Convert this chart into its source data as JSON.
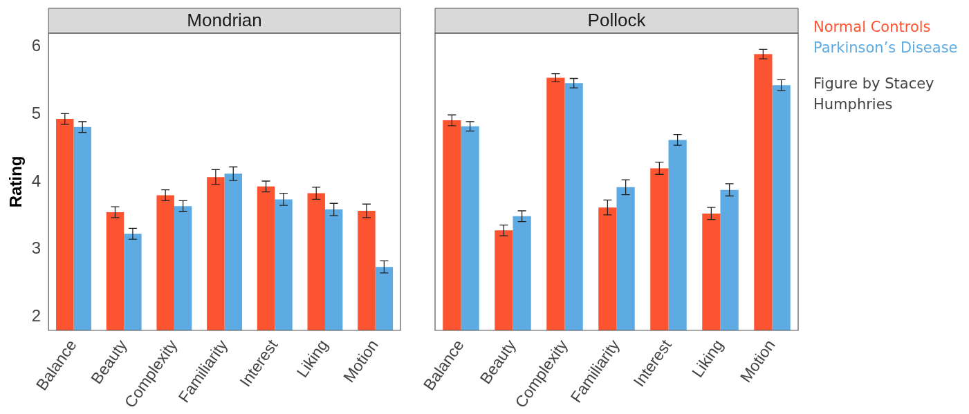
{
  "chart_data": [
    {
      "type": "bar",
      "title": "Mondrian",
      "ylabel": "Rating",
      "categories": [
        "Balance",
        "Beauty",
        "Complexity",
        "Familiarity",
        "Interest",
        "Liking",
        "Motion"
      ],
      "series": [
        {
          "name": "Normal Controls",
          "color": "#fc5430",
          "values": [
            4.93,
            3.55,
            3.8,
            4.07,
            3.93,
            3.83,
            3.57
          ],
          "errors": [
            0.08,
            0.08,
            0.08,
            0.11,
            0.08,
            0.09,
            0.1
          ]
        },
        {
          "name": "Parkinson’s Disease",
          "color": "#5dabe2",
          "values": [
            4.81,
            3.23,
            3.64,
            4.12,
            3.74,
            3.59,
            2.74
          ],
          "errors": [
            0.08,
            0.08,
            0.08,
            0.1,
            0.09,
            0.09,
            0.09
          ]
        }
      ],
      "ylim": [
        1.8,
        6.2
      ],
      "yticks": [
        2,
        3,
        4,
        5,
        6
      ],
      "grid": false
    },
    {
      "type": "bar",
      "title": "Pollock",
      "categories": [
        "Balance",
        "Beauty",
        "Complexity",
        "Familiarity",
        "Interest",
        "Liking",
        "Motion"
      ],
      "series": [
        {
          "color": "#fc5430",
          "values": [
            4.91,
            3.28,
            5.54,
            3.62,
            4.2,
            3.53,
            5.89
          ],
          "errors": [
            0.08,
            0.08,
            0.06,
            0.11,
            0.09,
            0.09,
            0.07
          ]
        },
        {
          "color": "#5dabe2",
          "values": [
            4.82,
            3.49,
            5.46,
            3.92,
            4.62,
            3.88,
            5.43
          ],
          "errors": [
            0.07,
            0.08,
            0.07,
            0.11,
            0.08,
            0.09,
            0.08
          ]
        }
      ],
      "ylim": [
        1.8,
        6.2
      ],
      "yticks": [
        2,
        3,
        4,
        5,
        6
      ],
      "grid": false,
      "tick_labels": "x",
      "annotations": [
        "Figure by Stacey Humphries"
      ]
    }
  ]
}
